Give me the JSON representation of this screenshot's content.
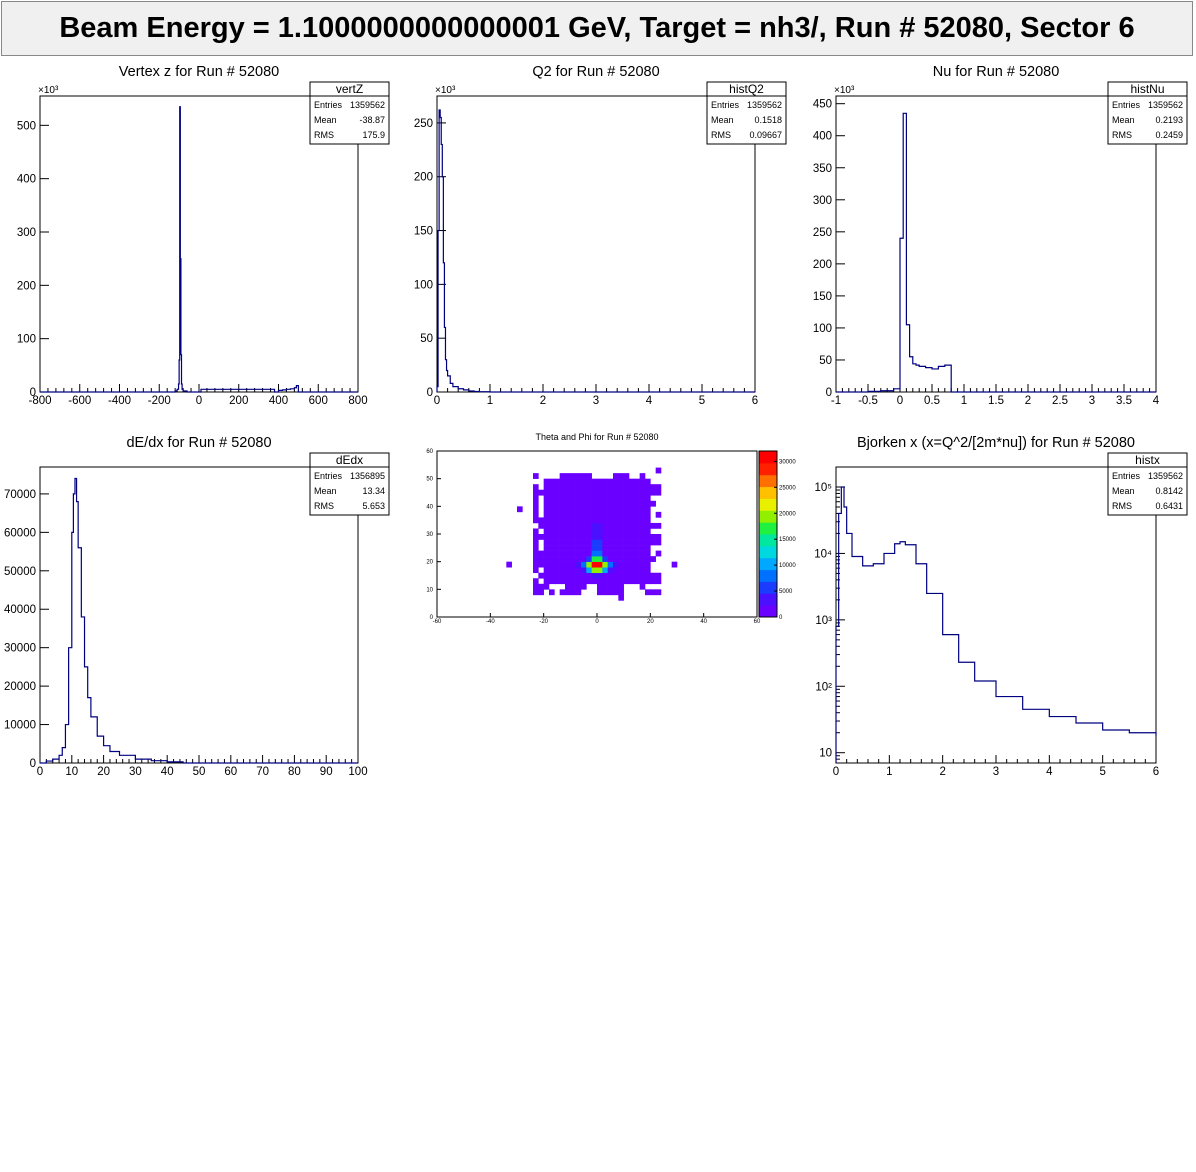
{
  "banner": {
    "title": "Beam Energy = 1.1000000000000001 GeV, Target = nh3/, Run # 52080, Sector 6"
  },
  "colors": {
    "line": "#000080",
    "axis": "#000000",
    "stat_border": "#000000",
    "palette": [
      "#6a00ff",
      "#4a10ff",
      "#1a3cff",
      "#0070ff",
      "#00a8ff",
      "#00d8e0",
      "#00e8a0",
      "#20f040",
      "#90f000",
      "#e8f000",
      "#ffc000",
      "#ff7000",
      "#ff2000",
      "#ff0000"
    ]
  },
  "chart_data": [
    {
      "type": "bar",
      "title": "Vertex z for Run # 52080",
      "stats": {
        "name": "vertZ",
        "rows": [
          [
            "Entries",
            "1359562"
          ],
          [
            "Mean",
            "-38.87"
          ],
          [
            "RMS",
            "175.9"
          ]
        ]
      },
      "xlim": [
        -800,
        800
      ],
      "ylim": [
        0,
        555
      ],
      "scale_label": "×10³",
      "xticks": [
        -800,
        -600,
        -400,
        -200,
        0,
        200,
        400,
        600,
        800
      ],
      "yticks": [
        0,
        100,
        200,
        300,
        400,
        500
      ],
      "x": [
        -800,
        -150,
        -120,
        -110,
        -103,
        -100,
        -97,
        -94,
        -91,
        -88,
        -85,
        -80,
        -60,
        0,
        10,
        380,
        400,
        420,
        440,
        460,
        480,
        490,
        500,
        800
      ],
      "y": [
        0,
        0,
        2,
        5,
        15,
        60,
        535,
        250,
        70,
        15,
        5,
        2,
        0,
        0,
        5,
        0,
        3,
        4,
        5,
        6,
        8,
        12,
        0,
        0
      ]
    },
    {
      "type": "bar",
      "title": "Q2 for Run # 52080",
      "stats": {
        "name": "histQ2",
        "rows": [
          [
            "Entries",
            "1359562"
          ],
          [
            "Mean",
            "0.1518"
          ],
          [
            "RMS",
            "0.09667"
          ]
        ]
      },
      "xlim": [
        0,
        6
      ],
      "ylim": [
        0,
        275
      ],
      "scale_label": "×10³",
      "xticks": [
        0,
        1,
        2,
        3,
        4,
        5,
        6
      ],
      "yticks": [
        0,
        50,
        100,
        150,
        200,
        250
      ],
      "x": [
        0,
        0.02,
        0.04,
        0.06,
        0.08,
        0.1,
        0.12,
        0.14,
        0.16,
        0.18,
        0.2,
        0.25,
        0.3,
        0.4,
        0.5,
        0.6,
        0.7,
        0.8,
        1.0,
        6
      ],
      "y": [
        5,
        150,
        262,
        255,
        230,
        200,
        120,
        60,
        30,
        20,
        15,
        8,
        5,
        3,
        2,
        1,
        0.5,
        0.3,
        0,
        0
      ]
    },
    {
      "type": "bar",
      "title": "Nu for Run # 52080",
      "stats": {
        "name": "histNu",
        "rows": [
          [
            "Entries",
            "1359562"
          ],
          [
            "Mean",
            "0.2193"
          ],
          [
            "RMS",
            "0.2459"
          ]
        ]
      },
      "xlim": [
        -1,
        4
      ],
      "ylim": [
        0,
        462
      ],
      "scale_label": "×10³",
      "xticks": [
        -1,
        -0.5,
        0,
        0.5,
        1,
        1.5,
        2,
        2.5,
        3,
        3.5,
        4
      ],
      "yticks": [
        0,
        50,
        100,
        150,
        200,
        250,
        300,
        350,
        400,
        450
      ],
      "x": [
        -1,
        -0.5,
        -0.3,
        -0.1,
        0.0,
        0.05,
        0.1,
        0.15,
        0.2,
        0.25,
        0.3,
        0.4,
        0.5,
        0.6,
        0.7,
        0.8,
        0.85,
        4
      ],
      "y": [
        0,
        1,
        2,
        5,
        240,
        435,
        105,
        55,
        44,
        42,
        40,
        38,
        36,
        40,
        42,
        0,
        0,
        0
      ]
    },
    {
      "type": "bar",
      "title": "dE/dx for Run # 52080",
      "stats": {
        "name": "dEdx",
        "rows": [
          [
            "Entries",
            "1356895"
          ],
          [
            "Mean",
            "13.34"
          ],
          [
            "RMS",
            "5.653"
          ]
        ]
      },
      "xlim": [
        0,
        100
      ],
      "ylim": [
        0,
        77000
      ],
      "scale_label": "",
      "xticks": [
        0,
        10,
        20,
        30,
        40,
        50,
        60,
        70,
        80,
        90,
        100
      ],
      "yticks": [
        0,
        10000,
        20000,
        30000,
        40000,
        50000,
        60000,
        70000
      ],
      "x": [
        0,
        2,
        4,
        6,
        7,
        8,
        9,
        10,
        10.5,
        11,
        11.5,
        12,
        13,
        14,
        15,
        16,
        18,
        20,
        22,
        25,
        30,
        35,
        40,
        45,
        100
      ],
      "y": [
        0,
        500,
        1000,
        2000,
        4000,
        10000,
        30000,
        60000,
        70000,
        74000,
        68000,
        56000,
        38000,
        25000,
        17000,
        12000,
        7000,
        4500,
        3000,
        2000,
        1000,
        600,
        300,
        0,
        0
      ]
    },
    {
      "type": "heatmap",
      "title": "Theta and Phi for Run # 52080",
      "xlim": [
        -60,
        60
      ],
      "ylim": [
        0,
        60
      ],
      "zlim": [
        0,
        32000
      ],
      "xticks": [
        -60,
        -40,
        -20,
        0,
        20,
        40,
        60
      ],
      "yticks": [
        0,
        10,
        20,
        30,
        40,
        50,
        60
      ],
      "zticks": [
        0,
        5000,
        10000,
        15000,
        20000,
        25000,
        30000
      ],
      "peak": {
        "x": 0,
        "y": 18.5,
        "value": 32000
      }
    },
    {
      "type": "bar",
      "title": "Bjorken x  (x=Q^2/[2m*nu]) for Run # 52080",
      "stats": {
        "name": "histx",
        "rows": [
          [
            "Entries",
            "1359562"
          ],
          [
            "Mean",
            "0.8142"
          ],
          [
            "RMS",
            "0.6431"
          ]
        ]
      },
      "xlim": [
        0,
        6
      ],
      "ylim": [
        7,
        200000
      ],
      "yscale": "log",
      "xticks": [
        0,
        1,
        2,
        3,
        4,
        5,
        6
      ],
      "yticks": [
        10,
        100,
        1000,
        10000,
        100000
      ],
      "ytick_labels": [
        "10",
        "10²",
        "10³",
        "10⁴",
        "10⁵"
      ],
      "x": [
        0,
        0.05,
        0.1,
        0.15,
        0.2,
        0.3,
        0.5,
        0.7,
        0.9,
        1.1,
        1.2,
        1.3,
        1.5,
        1.7,
        2.0,
        2.3,
        2.6,
        3.0,
        3.5,
        4.0,
        4.5,
        5.0,
        5.5,
        6.0
      ],
      "y": [
        800,
        40000,
        100000,
        50000,
        20000,
        9000,
        6500,
        7000,
        10000,
        14000,
        15000,
        13500,
        7000,
        2500,
        600,
        230,
        120,
        70,
        45,
        35,
        28,
        22,
        20,
        18
      ]
    }
  ]
}
